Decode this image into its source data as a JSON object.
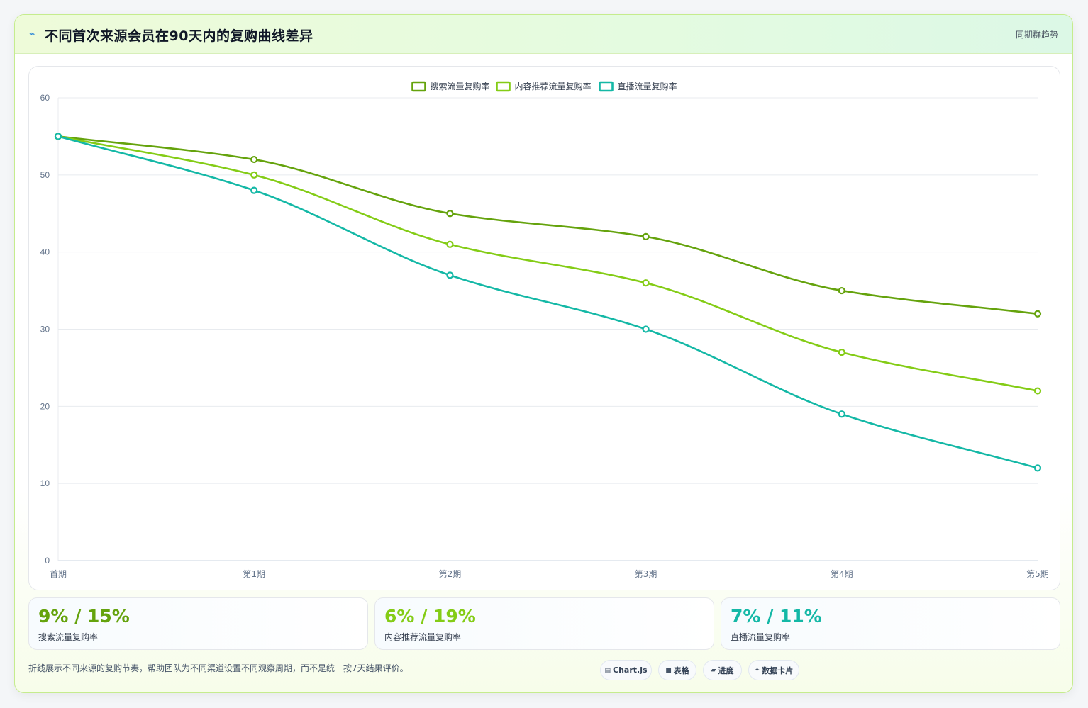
{
  "header": {
    "title": "不同首次来源会员在90天内的复购曲线差异",
    "badge": "同期群趋势"
  },
  "chart_data": {
    "type": "line",
    "categories": [
      "首期",
      "第1期",
      "第2期",
      "第3期",
      "第4期",
      "第5期"
    ],
    "series": [
      {
        "name": "搜索流量复购率",
        "color": "#65a30d",
        "values": [
          55,
          52,
          45,
          42,
          35,
          32
        ]
      },
      {
        "name": "内容推荐流量复购率",
        "color": "#84cc16",
        "values": [
          55,
          50,
          41,
          36,
          27,
          22
        ]
      },
      {
        "name": "直播流量复购率",
        "color": "#14b8a6",
        "values": [
          55,
          48,
          37,
          30,
          19,
          12
        ]
      }
    ],
    "yticks": [
      0,
      10,
      20,
      30,
      40,
      50,
      60
    ],
    "ylim": [
      0,
      60
    ],
    "grid": true,
    "legend": "top-center"
  },
  "stats": [
    {
      "value": "9% / 15%",
      "label": "搜索流量复购率",
      "color": "#65a30d"
    },
    {
      "value": "6% / 19%",
      "label": "内容推荐流量复购率",
      "color": "#84cc16"
    },
    {
      "value": "7% / 11%",
      "label": "直播流量复购率",
      "color": "#14b8a6"
    }
  ],
  "footer": {
    "note": "折线展示不同来源的复购节奏，帮助团队为不同渠道设置不同观察周期，而不是统一按7天结果评价。",
    "pills": [
      {
        "icon": "chart-icon",
        "glyph": "▤",
        "label": "Chart.js"
      },
      {
        "icon": "table-icon",
        "glyph": "■",
        "label": "表格"
      },
      {
        "icon": "progress-icon",
        "glyph": "▰",
        "label": "进度"
      },
      {
        "icon": "sparkle-icon",
        "glyph": "✦",
        "label": "数据卡片"
      }
    ]
  }
}
